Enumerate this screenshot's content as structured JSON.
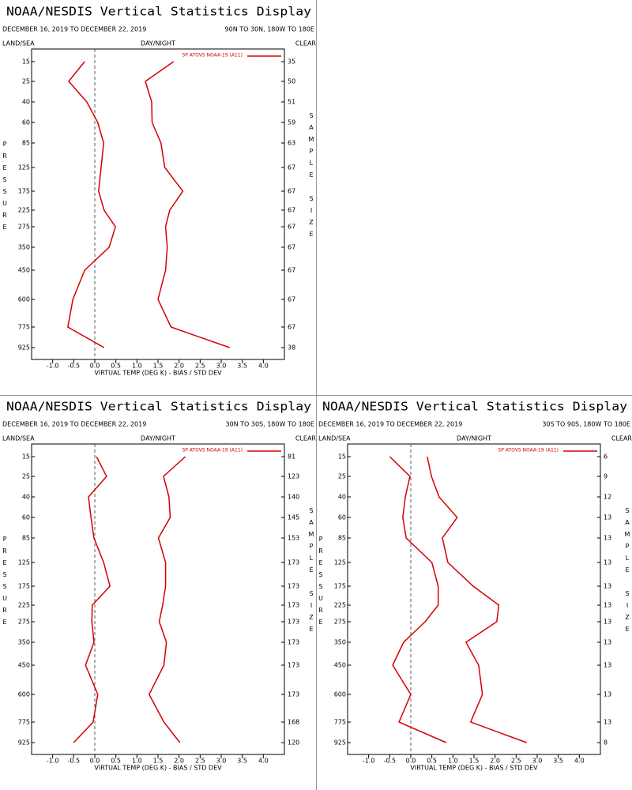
{
  "chart_data": [
    {
      "type": "line",
      "title": "NOAA/NESDIS Vertical Statistics Display",
      "subtitle": "DECEMBER 16, 2019 TO DECEMBER 22, 2019",
      "region": "90N TO 30N, 180W TO 180E",
      "left_header": "LAND/SEA",
      "center_header": "DAY/NIGHT",
      "right_header": "CLEAR",
      "y_label": "PRESSURE",
      "y2_label": "SAMPLE SIZE",
      "x_label": "VIRTUAL TEMP (DEG K) - BIAS / STD DEV",
      "legend": "SP ATOVS NOAA-19 (A11)",
      "categories": [
        "15",
        "25",
        "40",
        "60",
        "85",
        "125",
        "175",
        "225",
        "275",
        "350",
        "450",
        "600",
        "775",
        "925"
      ],
      "sample_sizes": [
        "35",
        "50",
        "51",
        "59",
        "63",
        "67",
        "67",
        "67",
        "67",
        "67",
        "67",
        "67",
        "67",
        "38"
      ],
      "series": [
        {
          "name": "BIAS",
          "color": "#d40000",
          "values": [
            -0.24,
            -0.62,
            -0.19,
            0.07,
            0.21,
            0.15,
            0.09,
            0.22,
            0.49,
            0.34,
            -0.24,
            -0.52,
            -0.64,
            0.22
          ]
        },
        {
          "name": "STD DEV",
          "color": "#d40000",
          "values": [
            1.87,
            1.2,
            1.35,
            1.36,
            1.57,
            1.66,
            2.09,
            1.78,
            1.68,
            1.72,
            1.68,
            1.5,
            1.81,
            3.2
          ]
        }
      ],
      "xlim": [
        -1.5,
        4.5
      ],
      "xticks": [
        {
          "value": -1,
          "label": "-1.0"
        },
        -0.5,
        {
          "value": 0,
          "label": "0.0"
        },
        0.5,
        {
          "value": 1,
          "label": "1.0"
        },
        1.5,
        {
          "value": 2,
          "label": "2.0"
        },
        2.5,
        {
          "value": 3,
          "label": "3.0"
        },
        3.5,
        {
          "value": 4,
          "label": "4.0"
        }
      ]
    },
    {
      "type": "line",
      "title": "NOAA/NESDIS Vertical Statistics Display",
      "subtitle": "DECEMBER 16, 2019 TO DECEMBER 22, 2019",
      "region": "30N TO 30S, 180W TO 180E",
      "left_header": "LAND/SEA",
      "center_header": "DAY/NIGHT",
      "right_header": "CLEAR",
      "y_label": "PRESSURE",
      "y2_label": "SAMPLE SIZE",
      "x_label": "VIRTUAL TEMP (DEG K) - BIAS / STD DEV",
      "legend": "SP ATOVS NOAA-19 (A11)",
      "categories": [
        "15",
        "25",
        "40",
        "60",
        "85",
        "125",
        "175",
        "225",
        "275",
        "350",
        "450",
        "600",
        "775",
        "925"
      ],
      "sample_sizes": [
        "81",
        "123",
        "140",
        "145",
        "153",
        "173",
        "173",
        "173",
        "173",
        "173",
        "173",
        "173",
        "168",
        "120"
      ],
      "series": [
        {
          "name": "BIAS",
          "color": "#d40000",
          "values": [
            0.04,
            0.28,
            -0.15,
            -0.09,
            -0.02,
            0.21,
            0.36,
            -0.06,
            -0.07,
            -0.02,
            -0.22,
            0.07,
            -0.04,
            -0.5
          ]
        },
        {
          "name": "STD DEV",
          "color": "#d40000",
          "values": [
            2.15,
            1.63,
            1.76,
            1.79,
            1.51,
            1.68,
            1.68,
            1.61,
            1.53,
            1.7,
            1.64,
            1.29,
            1.64,
            2.02
          ]
        }
      ],
      "xlim": [
        -1.5,
        4.5
      ],
      "xticks": [
        {
          "value": -1,
          "label": "-1.0"
        },
        -0.5,
        {
          "value": 0,
          "label": "0.0"
        },
        0.5,
        {
          "value": 1,
          "label": "1.0"
        },
        1.5,
        {
          "value": 2,
          "label": "2.0"
        },
        2.5,
        {
          "value": 3,
          "label": "3.0"
        },
        3.5,
        {
          "value": 4,
          "label": "4.0"
        }
      ]
    },
    {
      "type": "line",
      "title": "NOAA/NESDIS Vertical Statistics Display",
      "subtitle": "DECEMBER 16, 2019 TO DECEMBER 22, 2019",
      "region": "30S TO 90S, 180W TO 180E",
      "left_header": "LAND/SEA",
      "center_header": "DAY/NIGHT",
      "right_header": "CLEAR",
      "y_label": "PRESSURE",
      "y2_label": "SAMPLE SIZE",
      "x_label": "VIRTUAL TEMP (DEG K) - BIAS / STD DEV",
      "legend": "SP ATOVS NOAA-19 (A11)",
      "categories": [
        "15",
        "25",
        "40",
        "60",
        "85",
        "125",
        "175",
        "225",
        "275",
        "350",
        "450",
        "600",
        "775",
        "925"
      ],
      "sample_sizes": [
        "6",
        "9",
        "12",
        "13",
        "13",
        "13",
        "13",
        "13",
        "13",
        "13",
        "13",
        "13",
        "13",
        "8"
      ],
      "series": [
        {
          "name": "BIAS",
          "color": "#d40000",
          "values": [
            -0.5,
            -0.02,
            -0.13,
            -0.19,
            -0.11,
            0.5,
            0.65,
            0.65,
            0.34,
            -0.17,
            -0.43,
            0.0,
            -0.28,
            0.84
          ]
        },
        {
          "name": "STD DEV",
          "color": "#d40000",
          "values": [
            0.39,
            0.49,
            0.67,
            1.1,
            0.75,
            0.88,
            1.48,
            2.09,
            2.04,
            1.31,
            1.61,
            1.7,
            1.42,
            2.75
          ]
        }
      ],
      "xlim": [
        -1.5,
        4.5
      ],
      "xticks": [
        {
          "value": -1,
          "label": "-1.0"
        },
        -0.5,
        {
          "value": 0,
          "label": "0.0"
        },
        0.5,
        {
          "value": 1,
          "label": "1.0"
        },
        1.5,
        {
          "value": 2,
          "label": "2.0"
        },
        2.5,
        {
          "value": 3,
          "label": "3.0"
        },
        3.5,
        {
          "value": 4,
          "label": "4.0"
        }
      ]
    }
  ]
}
